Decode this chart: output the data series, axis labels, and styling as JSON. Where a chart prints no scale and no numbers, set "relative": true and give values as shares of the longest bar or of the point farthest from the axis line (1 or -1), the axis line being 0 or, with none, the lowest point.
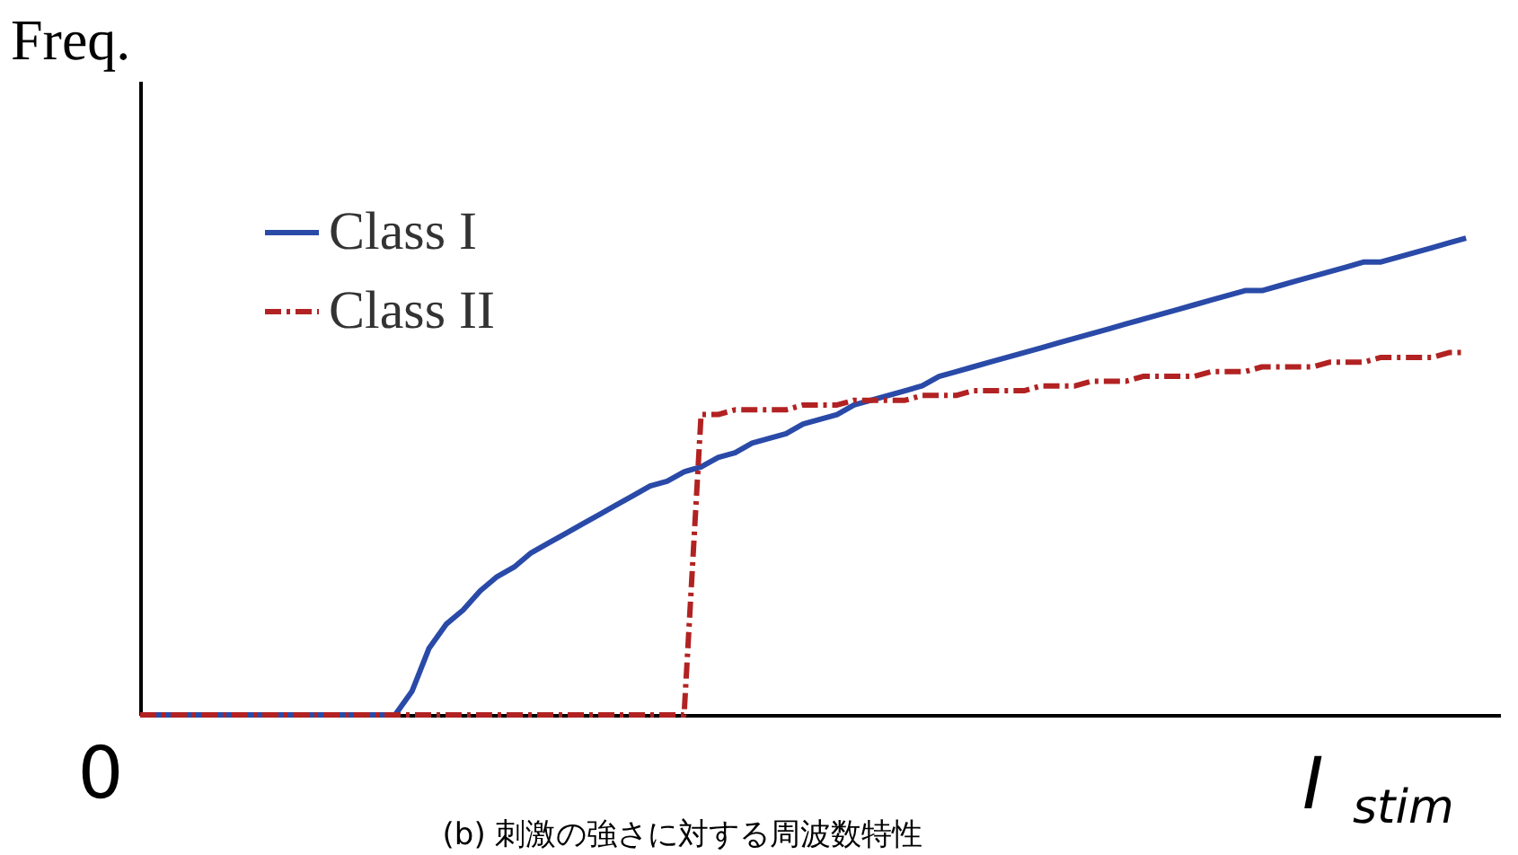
{
  "chart_data": {
    "type": "line",
    "relative": true,
    "ylabel": "Freq.",
    "xlabel": "I$_{stim}$",
    "legend": "top left",
    "grid": false,
    "marker": "none",
    "annotations": [
      "0",
      "(b) 刺激の強さに対する周波数特性"
    ],
    "categories": [
      null,
      null,
      null,
      null,
      null,
      null,
      null,
      null,
      null,
      null,
      null,
      null,
      null,
      null,
      null,
      null,
      null,
      null,
      null,
      null,
      null,
      null,
      null,
      null,
      null,
      null,
      null,
      null,
      null,
      null,
      null,
      null,
      null,
      null,
      null,
      null,
      null,
      null,
      null,
      null,
      null,
      null,
      null,
      null,
      null,
      null,
      null,
      null,
      null,
      null,
      null,
      null,
      null,
      null,
      null,
      null,
      null,
      null,
      null,
      null,
      null,
      null,
      null,
      null,
      null,
      null,
      null,
      null,
      null,
      null,
      null,
      null,
      null,
      null,
      null,
      null,
      null,
      null,
      null,
      null,
      null
    ],
    "series": [
      {
        "name": "Class I",
        "color": "#2a4aa8",
        "line_style": "solid",
        "values": [
          0,
          0,
          0,
          0,
          0,
          0,
          0,
          0,
          0,
          0,
          0,
          0,
          0,
          0,
          0,
          0,
          0.05,
          0.14,
          0.19,
          0.22,
          0.26,
          0.29,
          0.31,
          0.34,
          0.36,
          0.38,
          0.4,
          0.42,
          0.44,
          0.46,
          0.48,
          0.49,
          0.51,
          0.52,
          0.54,
          0.55,
          0.57,
          0.58,
          0.59,
          0.61,
          0.62,
          0.63,
          0.65,
          0.66,
          0.67,
          0.68,
          0.69,
          0.71,
          0.72,
          0.73,
          0.74,
          0.75,
          0.76,
          0.77,
          0.78,
          0.79,
          0.8,
          0.81,
          0.82,
          0.83,
          0.84,
          0.85,
          0.86,
          0.87,
          0.88,
          0.89,
          0.89,
          0.9,
          0.91,
          0.92,
          0.93,
          0.94,
          0.95,
          0.95,
          0.96,
          0.97,
          0.98,
          0.99,
          1.0,
          null,
          null
        ]
      },
      {
        "name": "Class II",
        "color": "#b22222",
        "line_style": "dashdot",
        "values": [
          0,
          0,
          0,
          0,
          0,
          0,
          0,
          0,
          0,
          0,
          0,
          0,
          0,
          0,
          0,
          0,
          0,
          0,
          0,
          0,
          0,
          0,
          0,
          0,
          0,
          0,
          0,
          0,
          0,
          0,
          0,
          0,
          0,
          0.63,
          0.63,
          0.64,
          0.64,
          0.64,
          0.64,
          0.65,
          0.65,
          0.65,
          0.66,
          0.66,
          0.66,
          0.66,
          0.67,
          0.67,
          0.67,
          0.68,
          0.68,
          0.68,
          0.68,
          0.69,
          0.69,
          0.69,
          0.7,
          0.7,
          0.7,
          0.71,
          0.71,
          0.71,
          0.71,
          0.72,
          0.72,
          0.72,
          0.73,
          0.73,
          0.73,
          0.73,
          0.74,
          0.74,
          0.74,
          0.75,
          0.75,
          0.75,
          0.75,
          0.76,
          0.76,
          null,
          null
        ]
      }
    ]
  }
}
